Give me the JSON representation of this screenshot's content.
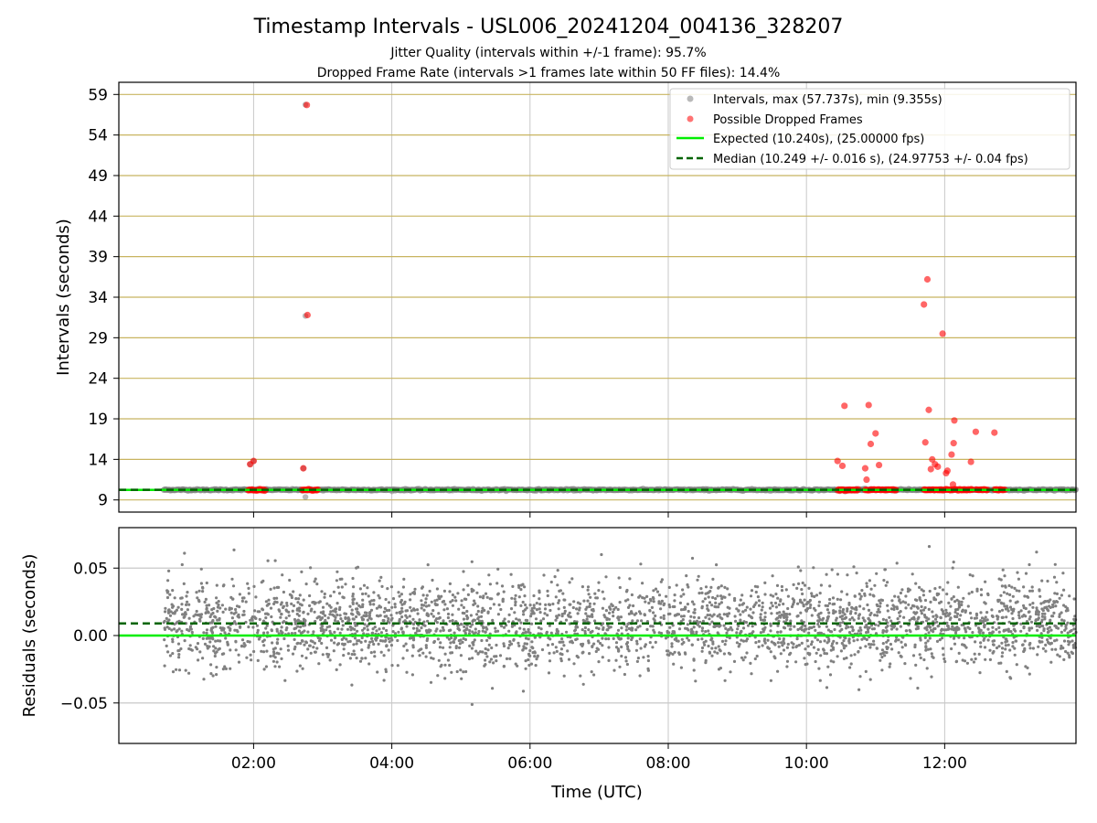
{
  "figure": {
    "title": "Timestamp Intervals - USL006_20241204_004136_328207",
    "subtitle1": "Jitter Quality (intervals within +/-1 frame): 95.7%",
    "subtitle2": "Dropped Frame Rate (intervals >1 frames late within 50 FF files): 14.4%"
  },
  "colors": {
    "intervals": "#808080",
    "dropped": "#ff0000",
    "expected": "#00ee00",
    "median": "#006400",
    "hgrid": "#c8b460",
    "vgrid": "#c8c8c8"
  },
  "chart_data": [
    {
      "type": "scatter",
      "xlabel": "",
      "ylabel": "Intervals (seconds)",
      "xlim": [
        0.05,
        13.9
      ],
      "ylim": [
        7.5,
        60.5
      ],
      "x_ticks": [
        2,
        4,
        6,
        8,
        10,
        12
      ],
      "x_tick_labels": [
        "",
        "",
        "",
        "",
        "",
        ""
      ],
      "y_ticks": [
        9,
        14,
        19,
        24,
        29,
        34,
        39,
        44,
        49,
        54,
        59
      ],
      "y_tick_labels": [
        "9",
        "14",
        "19",
        "24",
        "29",
        "34",
        "39",
        "44",
        "49",
        "54",
        "59"
      ],
      "grid": true,
      "legend_position": "top-right",
      "legend": [
        "Intervals, max (57.737s), min (9.355s)",
        "Possible Dropped Frames",
        "Expected (10.240s), (25.00000 fps)",
        "Median (10.249 +/- 0.016 s), (24.97753 +/- 0.04 fps)"
      ],
      "series": [
        {
          "name": "Intervals, max (57.737s), min (9.355s)",
          "kind": "points",
          "x_range": [
            0.7,
            13.9
          ],
          "y_center": 10.25,
          "y_spread": 0.05,
          "points": [
            [
              2.75,
              9.355
            ],
            [
              2.75,
              57.737
            ],
            [
              2.75,
              31.7
            ],
            [
              1.95,
              13.4
            ],
            [
              2.0,
              13.8
            ],
            [
              2.72,
              12.9
            ]
          ]
        },
        {
          "name": "Possible Dropped Frames",
          "kind": "points",
          "points": [
            [
              1.95,
              13.4
            ],
            [
              2.0,
              13.8
            ],
            [
              2.72,
              12.9
            ],
            [
              2.77,
              57.7
            ],
            [
              2.78,
              31.8
            ],
            [
              10.45,
              13.8
            ],
            [
              10.52,
              13.2
            ],
            [
              10.55,
              20.6
            ],
            [
              10.85,
              12.9
            ],
            [
              10.87,
              11.5
            ],
            [
              10.9,
              20.7
            ],
            [
              10.93,
              15.9
            ],
            [
              11.0,
              17.2
            ],
            [
              11.05,
              13.3
            ],
            [
              11.7,
              33.1
            ],
            [
              11.72,
              16.1
            ],
            [
              11.75,
              36.2
            ],
            [
              11.77,
              20.1
            ],
            [
              11.8,
              12.8
            ],
            [
              11.82,
              14.0
            ],
            [
              11.86,
              13.4
            ],
            [
              11.9,
              13.1
            ],
            [
              11.97,
              29.5
            ],
            [
              12.02,
              12.3
            ],
            [
              12.04,
              12.6
            ],
            [
              12.1,
              14.6
            ],
            [
              12.12,
              10.9
            ],
            [
              12.13,
              16.0
            ],
            [
              12.14,
              18.8
            ],
            [
              12.38,
              13.7
            ],
            [
              12.45,
              17.4
            ],
            [
              12.72,
              17.3
            ]
          ],
          "baseline_ranges": [
            [
              1.92,
              2.17
            ],
            [
              2.7,
              2.93
            ],
            [
              10.45,
              10.75
            ],
            [
              10.85,
              11.3
            ],
            [
              11.7,
              12.4
            ],
            [
              12.45,
              12.62
            ],
            [
              12.72,
              12.87
            ]
          ],
          "baseline_y": 10.24
        },
        {
          "name": "Expected (10.240s), (25.00000 fps)",
          "kind": "hline",
          "y": 10.24
        },
        {
          "name": "Median (10.249 +/- 0.016 s), (24.97753 +/- 0.04 fps)",
          "kind": "hline",
          "y": 10.249
        }
      ]
    },
    {
      "type": "scatter",
      "xlabel": "Time (UTC)",
      "ylabel": "Residuals (seconds)",
      "xlim": [
        0.05,
        13.9
      ],
      "ylim": [
        -0.08,
        0.08
      ],
      "x_ticks": [
        2,
        4,
        6,
        8,
        10,
        12
      ],
      "x_tick_labels": [
        "02:00",
        "04:00",
        "06:00",
        "08:00",
        "10:00",
        "12:00"
      ],
      "y_ticks": [
        0.05,
        0.0,
        -0.05
      ],
      "y_tick_labels": [
        "0.05",
        "0.00",
        "−0.05"
      ],
      "grid": true,
      "series": [
        {
          "name": "",
          "kind": "points",
          "x_range": [
            0.7,
            13.9
          ],
          "y_center": 0.009,
          "y_spread": 0.016,
          "y_min": -0.054,
          "y_max": 0.066
        },
        {
          "name": "",
          "kind": "hline",
          "y": 0.0
        },
        {
          "name": "",
          "kind": "hline",
          "y": 0.009
        }
      ]
    }
  ]
}
